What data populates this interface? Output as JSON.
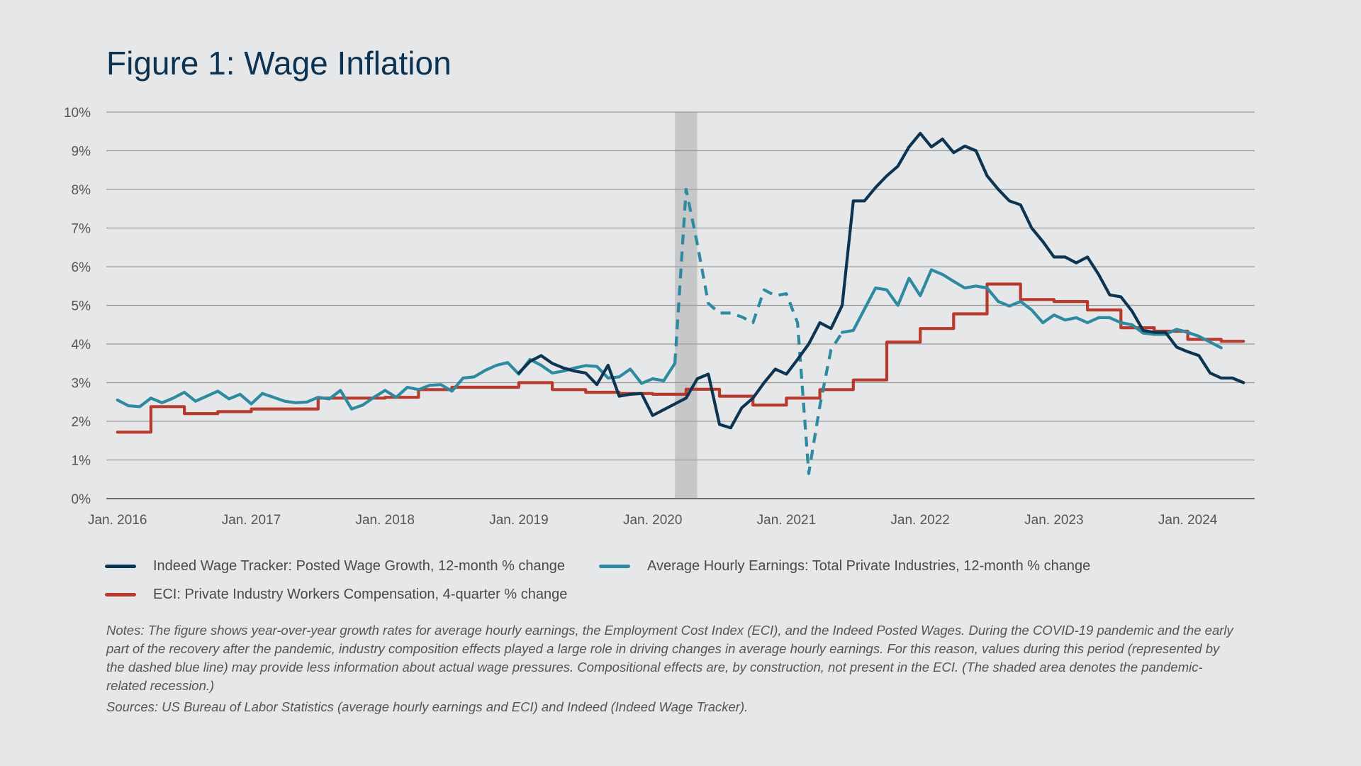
{
  "title": "Figure 1: Wage Inflation",
  "colors": {
    "indeed": "#0d3552",
    "ahe": "#2e8aa0",
    "eci": "#b83a2c",
    "recession": "#c6c7c9",
    "grid": "#9a9b9d",
    "axis_text": "#555555"
  },
  "chart_data": {
    "type": "line",
    "x_ticks": [
      "Jan. 2016",
      "Jan. 2017",
      "Jan. 2018",
      "Jan. 2019",
      "Jan. 2020",
      "Jan. 2021",
      "Jan. 2022",
      "Jan. 2023",
      "Jan. 2024"
    ],
    "y_ticks": [
      "0%",
      "1%",
      "2%",
      "3%",
      "4%",
      "5%",
      "6%",
      "7%",
      "8%",
      "9%",
      "10%"
    ],
    "ylim": [
      0,
      10
    ],
    "xlim": [
      "2015-12",
      "2024-07"
    ],
    "grid": true,
    "legend_position": "bottom",
    "recession_shading": {
      "start": "2020-03",
      "end": "2020-05"
    },
    "series": [
      {
        "name": "Indeed Wage Tracker: Posted Wage Growth, 12-month % change",
        "key": "indeed",
        "style": "solid",
        "start": "2019-01",
        "values": [
          3.25,
          3.55,
          3.7,
          3.5,
          3.38,
          3.3,
          3.25,
          2.95,
          3.45,
          2.65,
          2.7,
          2.72,
          2.15,
          2.3,
          2.45,
          2.6,
          3.1,
          3.22,
          1.92,
          1.83,
          2.35,
          2.6,
          3.0,
          3.35,
          3.22,
          3.6,
          4.0,
          4.55,
          4.4,
          5.0,
          7.7,
          7.7,
          8.05,
          8.35,
          8.6,
          9.1,
          9.45,
          9.1,
          9.3,
          8.95,
          9.12,
          9.0,
          8.35,
          8.0,
          7.7,
          7.6,
          7.0,
          6.65,
          6.25,
          6.25,
          6.1,
          6.25,
          5.8,
          5.27,
          5.22,
          4.85,
          4.35,
          4.3,
          4.3,
          3.92,
          3.8,
          3.7,
          3.25,
          3.12,
          3.12,
          3.0
        ]
      },
      {
        "name": "Average Hourly Earnings: Total Private Industries, 12-month % change",
        "key": "ahe",
        "start": "2016-01",
        "segments": [
          {
            "style": "solid",
            "start": "2016-01",
            "values": [
              2.55,
              2.4,
              2.38,
              2.6,
              2.48,
              2.6,
              2.75,
              2.52,
              2.65,
              2.78,
              2.58,
              2.7,
              2.45,
              2.72,
              2.62,
              2.52,
              2.48,
              2.5,
              2.62,
              2.58,
              2.8,
              2.32,
              2.42,
              2.62,
              2.8,
              2.62,
              2.88,
              2.82,
              2.93,
              2.95,
              2.78,
              3.12,
              3.15,
              3.32,
              3.45,
              3.52,
              3.22,
              3.6,
              3.45,
              3.25,
              3.3,
              3.38,
              3.44,
              3.42,
              3.12,
              3.15,
              3.35,
              2.98,
              3.1,
              3.05,
              3.5
            ]
          },
          {
            "style": "dashed",
            "start": "2020-03",
            "values": [
              3.5,
              8.0,
              6.6,
              5.05,
              4.8,
              4.8,
              4.7,
              4.55,
              5.4,
              5.25,
              5.3,
              4.55,
              0.65,
              2.4,
              3.85,
              4.3
            ]
          },
          {
            "style": "solid",
            "start": "2021-06",
            "values": [
              4.3,
              4.35,
              4.9,
              5.45,
              5.4,
              5.0,
              5.7,
              5.25,
              5.92,
              5.8,
              5.62,
              5.45,
              5.5,
              5.45,
              5.1,
              4.98,
              5.1,
              4.88,
              4.55,
              4.75,
              4.62,
              4.68,
              4.55,
              4.68,
              4.68,
              4.55,
              4.5,
              4.28,
              4.25,
              4.25,
              4.38,
              4.3,
              4.2,
              4.05,
              3.9
            ]
          }
        ]
      },
      {
        "name": "ECI: Private Industry Workers Compensation, 4-quarter % change",
        "key": "eci",
        "style": "solid",
        "step": "quarterly",
        "start": "2016-01",
        "values": [
          1.72,
          2.38,
          2.2,
          2.25,
          2.32,
          2.32,
          2.6,
          2.6,
          2.62,
          2.82,
          2.88,
          2.88,
          3.0,
          2.82,
          2.75,
          2.72,
          2.7,
          2.83,
          2.65,
          2.42,
          2.6,
          2.82,
          3.07,
          4.05,
          4.4,
          4.78,
          5.55,
          5.15,
          5.1,
          4.88,
          4.42,
          4.33,
          4.12,
          4.07
        ]
      }
    ]
  },
  "legend": [
    {
      "key": "indeed",
      "label": "Indeed Wage Tracker: Posted Wage Growth, 12-month % change"
    },
    {
      "key": "ahe",
      "label": "Average Hourly Earnings: Total Private Industries, 12-month % change"
    },
    {
      "key": "eci",
      "label": "ECI: Private Industry Workers Compensation, 4-quarter % change"
    }
  ],
  "notes": "Notes: The figure shows year-over-year growth rates for average hourly earnings, the Employment Cost Index (ECI), and the Indeed Posted Wages. During the COVID-19 pandemic and the early part of the recovery after the pandemic, industry composition effects played a large role in driving changes in average hourly earnings. For this reason, values during this period (represented by the dashed blue line) may provide less information about actual wage pressures. Compositional effects are, by construction, not present in the ECI. (The shaded area denotes the pandemic-related recession.)",
  "sources": "Sources: US Bureau of Labor Statistics (average hourly earnings and ECI) and Indeed (Indeed Wage Tracker)."
}
